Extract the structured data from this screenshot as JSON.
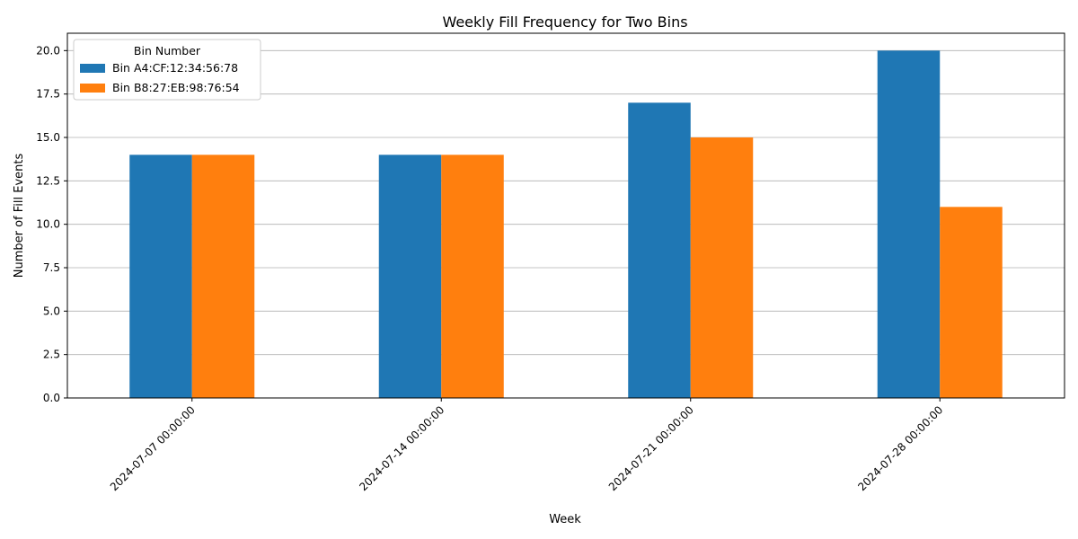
{
  "chart_data": {
    "type": "bar",
    "title": "Weekly Fill Frequency for Two Bins",
    "xlabel": "Week",
    "ylabel": "Number of Fill Events",
    "categories": [
      "2024-07-07 00:00:00",
      "2024-07-14 00:00:00",
      "2024-07-21 00:00:00",
      "2024-07-28 00:00:00"
    ],
    "series": [
      {
        "name": "Bin A4:CF:12:34:56:78",
        "values": [
          14,
          14,
          17,
          20
        ],
        "color": "#1f77b4"
      },
      {
        "name": "Bin B8:27:EB:98:76:54",
        "values": [
          14,
          14,
          15,
          11
        ],
        "color": "#ff7f0e"
      }
    ],
    "ylim": [
      0,
      21
    ],
    "yticks": [
      "0.0",
      "2.5",
      "5.0",
      "7.5",
      "10.0",
      "12.5",
      "15.0",
      "17.5",
      "20.0"
    ],
    "grid": "y",
    "legend": {
      "title": "Bin Number",
      "position": "top-left"
    }
  }
}
